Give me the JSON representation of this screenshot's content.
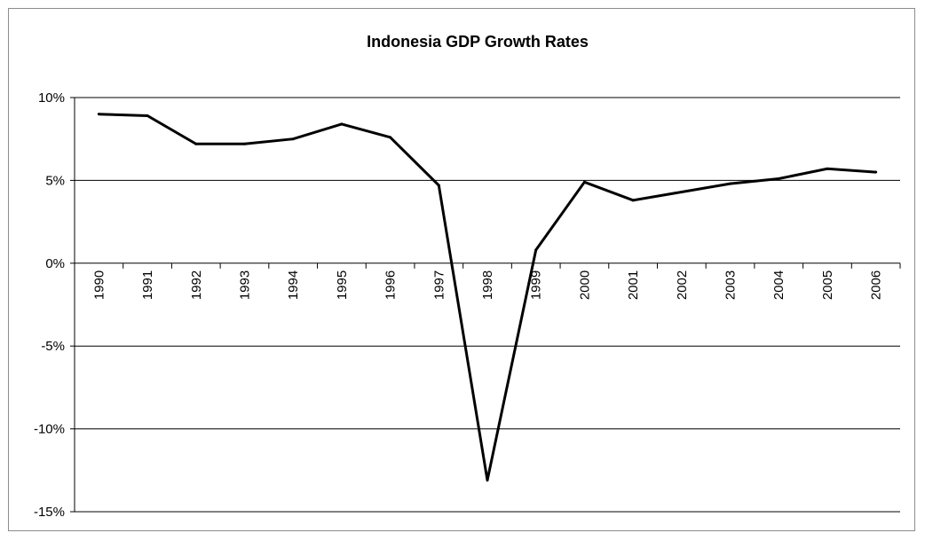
{
  "chart_data": {
    "type": "line",
    "title": "Indonesia GDP Growth Rates",
    "xlabel": "",
    "ylabel": "",
    "ylim": [
      -15,
      10
    ],
    "yticks": [
      10,
      5,
      0,
      -5,
      -10,
      -15
    ],
    "ytick_labels": [
      "10%",
      "5%",
      "0%",
      "-5%",
      "-10%",
      "-15%"
    ],
    "categories": [
      "1990",
      "1991",
      "1992",
      "1993",
      "1994",
      "1995",
      "1996",
      "1997",
      "1998",
      "1999",
      "2000",
      "2001",
      "2002",
      "2003",
      "2004",
      "2005",
      "2006"
    ],
    "series": [
      {
        "values": [
          9.0,
          8.9,
          7.2,
          7.2,
          7.5,
          8.4,
          7.6,
          4.7,
          -13.1,
          0.8,
          4.9,
          3.8,
          4.3,
          4.8,
          5.1,
          5.7,
          5.5
        ],
        "color": "#000000"
      }
    ],
    "grid": "horizontal",
    "legend": "none"
  }
}
